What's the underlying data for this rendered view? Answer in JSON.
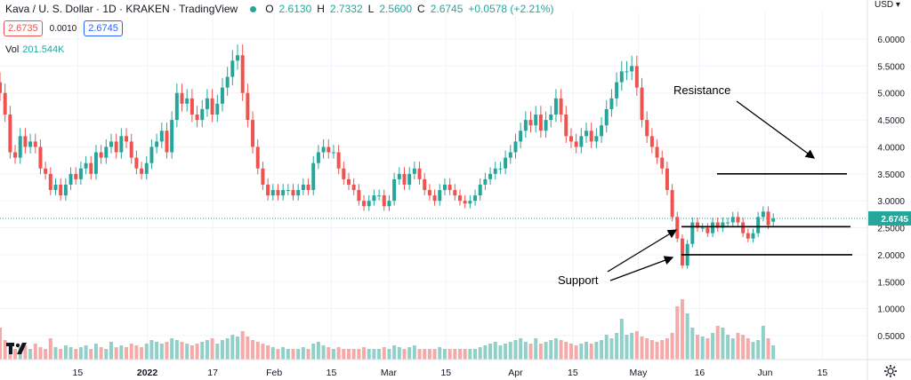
{
  "header": {
    "symbol": "Kava / U. S. Dollar · 1D · KRAKEN · TradingView",
    "open_label": "O",
    "open": "2.6130",
    "high_label": "H",
    "high": "2.7332",
    "low_label": "L",
    "low": "2.5600",
    "close_label": "C",
    "close": "2.6745",
    "change": "+0.0578 (+2.21%)"
  },
  "quote": {
    "bid": "2.6735",
    "spread": "0.0010",
    "ask": "2.6745"
  },
  "volume": {
    "label": "Vol",
    "value": "201.544K"
  },
  "currency": "USD",
  "last_price_label": "2.6745",
  "annotations": {
    "resistance": "Resistance",
    "support": "Support"
  },
  "colors": {
    "up": "#26a69a",
    "down": "#ef5350",
    "up_vol": "#8fd1c9",
    "down_vol": "#f7a9a7",
    "last_price": "#26a69a"
  },
  "icons": {
    "logo": "tradingview-logo-icon",
    "settings": "gear-icon"
  },
  "chart_data": {
    "type": "candlestick",
    "y_axis": {
      "scale": "linear",
      "ticks": [
        "6.0000",
        "5.5000",
        "5.0000",
        "4.5000",
        "4.0000",
        "3.5000",
        "3.0000",
        "2.5000",
        "2.0000",
        "1.5000",
        "1.0000",
        "0.5000"
      ],
      "range": [
        0.25,
        6.2
      ]
    },
    "x_axis": {
      "ticks": [
        "15",
        "2022",
        "17",
        "Feb",
        "15",
        "Mar",
        "15",
        "Apr",
        "15",
        "May",
        "16",
        "Jun",
        "15"
      ],
      "tick_dates": [
        "2021-12-15",
        "2022-01-01",
        "2022-01-17",
        "2022-02-01",
        "2022-02-15",
        "2022-03-01",
        "2022-03-15",
        "2022-04-01",
        "2022-04-15",
        "2022-05-01",
        "2022-05-16",
        "2022-06-01",
        "2022-06-15"
      ],
      "range": [
        "2021-11-26",
        "2022-06-26"
      ]
    },
    "last_price": 2.6745,
    "levels": {
      "resistance": 3.5,
      "support_upper": 2.52,
      "support_lower": 2.0
    },
    "candles_close": [
      5.0,
      4.6,
      3.9,
      3.8,
      4.2,
      4.0,
      4.1,
      4.0,
      3.6,
      3.5,
      3.2,
      3.3,
      3.1,
      3.3,
      3.5,
      3.4,
      3.6,
      3.7,
      3.5,
      3.9,
      3.8,
      4.0,
      4.1,
      3.9,
      4.2,
      4.1,
      3.8,
      3.6,
      3.5,
      3.7,
      4.0,
      4.1,
      4.3,
      3.9,
      4.5,
      5.0,
      4.8,
      4.9,
      4.6,
      4.5,
      4.7,
      4.9,
      4.6,
      4.8,
      5.1,
      5.3,
      5.6,
      5.7,
      5.0,
      4.5,
      4.0,
      3.6,
      3.3,
      3.1,
      3.2,
      3.1,
      3.2,
      3.2,
      3.1,
      3.2,
      3.3,
      3.2,
      3.7,
      3.9,
      4.0,
      3.9,
      3.9,
      3.6,
      3.4,
      3.3,
      3.2,
      3.0,
      2.9,
      3.0,
      3.1,
      3.1,
      2.9,
      3.0,
      3.4,
      3.5,
      3.3,
      3.5,
      3.6,
      3.4,
      3.2,
      3.1,
      3.0,
      3.2,
      3.3,
      3.2,
      3.1,
      3.0,
      2.95,
      3.0,
      3.1,
      3.3,
      3.4,
      3.5,
      3.6,
      3.6,
      3.8,
      3.9,
      4.1,
      4.3,
      4.5,
      4.4,
      4.6,
      4.3,
      4.5,
      4.6,
      4.9,
      4.6,
      4.2,
      4.1,
      4.0,
      4.2,
      4.3,
      4.1,
      4.2,
      4.4,
      4.7,
      4.9,
      5.2,
      5.4,
      5.4,
      5.5,
      5.1,
      4.5,
      4.2,
      4.0,
      3.8,
      3.6,
      3.2,
      2.7,
      2.3,
      1.8,
      2.2,
      2.6,
      2.5,
      2.5,
      2.4,
      2.6,
      2.5,
      2.6,
      2.6,
      2.7,
      2.6,
      2.4,
      2.3,
      2.4,
      2.7,
      2.8,
      2.55,
      2.6745
    ],
    "candles_open": [
      5.2,
      5.0,
      4.6,
      3.9,
      3.8,
      4.2,
      4.0,
      4.1,
      4.0,
      3.6,
      3.5,
      3.2,
      3.3,
      3.1,
      3.3,
      3.5,
      3.4,
      3.6,
      3.7,
      3.5,
      3.9,
      3.8,
      4.0,
      4.1,
      3.9,
      4.2,
      4.1,
      3.8,
      3.6,
      3.5,
      3.7,
      4.0,
      4.1,
      4.3,
      3.9,
      4.5,
      5.0,
      4.8,
      4.9,
      4.6,
      4.5,
      4.7,
      4.9,
      4.6,
      4.8,
      5.1,
      5.3,
      5.6,
      5.7,
      5.0,
      4.5,
      4.0,
      3.6,
      3.3,
      3.1,
      3.2,
      3.1,
      3.2,
      3.2,
      3.1,
      3.2,
      3.3,
      3.2,
      3.7,
      3.9,
      4.0,
      3.9,
      3.9,
      3.6,
      3.4,
      3.3,
      3.2,
      3.0,
      2.9,
      3.0,
      3.1,
      3.1,
      2.9,
      3.0,
      3.4,
      3.5,
      3.3,
      3.5,
      3.6,
      3.4,
      3.2,
      3.1,
      3.0,
      3.2,
      3.3,
      3.2,
      3.1,
      3.0,
      2.95,
      3.0,
      3.1,
      3.3,
      3.4,
      3.5,
      3.6,
      3.6,
      3.8,
      3.9,
      4.1,
      4.3,
      4.5,
      4.4,
      4.6,
      4.3,
      4.5,
      4.6,
      4.9,
      4.6,
      4.2,
      4.1,
      4.0,
      4.2,
      4.3,
      4.1,
      4.2,
      4.4,
      4.7,
      4.9,
      5.2,
      5.4,
      5.4,
      5.5,
      5.1,
      4.5,
      4.2,
      4.0,
      3.8,
      3.6,
      3.2,
      2.7,
      2.3,
      1.8,
      2.2,
      2.6,
      2.5,
      2.5,
      2.4,
      2.6,
      2.5,
      2.6,
      2.6,
      2.7,
      2.6,
      2.4,
      2.3,
      2.4,
      2.7,
      2.8,
      2.613
    ],
    "volume": [
      0.9,
      0.55,
      0.4,
      0.3,
      0.35,
      0.4,
      0.3,
      0.45,
      0.35,
      0.3,
      0.6,
      0.35,
      0.3,
      0.4,
      0.35,
      0.3,
      0.35,
      0.4,
      0.3,
      0.45,
      0.35,
      0.3,
      0.5,
      0.35,
      0.4,
      0.35,
      0.45,
      0.4,
      0.35,
      0.45,
      0.55,
      0.5,
      0.45,
      0.5,
      0.6,
      0.55,
      0.5,
      0.45,
      0.4,
      0.45,
      0.5,
      0.55,
      0.6,
      0.45,
      0.55,
      0.6,
      0.7,
      0.65,
      0.8,
      0.65,
      0.55,
      0.5,
      0.45,
      0.4,
      0.35,
      0.3,
      0.35,
      0.3,
      0.3,
      0.3,
      0.35,
      0.3,
      0.45,
      0.5,
      0.4,
      0.35,
      0.3,
      0.35,
      0.3,
      0.3,
      0.3,
      0.3,
      0.35,
      0.3,
      0.3,
      0.3,
      0.35,
      0.3,
      0.4,
      0.35,
      0.3,
      0.35,
      0.4,
      0.3,
      0.3,
      0.3,
      0.3,
      0.35,
      0.3,
      0.3,
      0.3,
      0.3,
      0.3,
      0.3,
      0.3,
      0.35,
      0.4,
      0.45,
      0.5,
      0.4,
      0.45,
      0.5,
      0.55,
      0.6,
      0.5,
      0.45,
      0.6,
      0.45,
      0.5,
      0.55,
      0.6,
      0.55,
      0.5,
      0.45,
      0.4,
      0.45,
      0.5,
      0.45,
      0.5,
      0.55,
      0.7,
      0.6,
      0.75,
      1.15,
      0.7,
      0.75,
      0.8,
      0.65,
      0.6,
      0.55,
      0.5,
      0.55,
      0.6,
      0.75,
      1.5,
      1.7,
      1.3,
      0.9,
      0.7,
      0.65,
      0.6,
      0.75,
      0.95,
      0.9,
      0.7,
      0.6,
      0.75,
      0.7,
      0.6,
      0.5,
      0.55,
      0.95,
      0.6,
      0.4
    ]
  }
}
